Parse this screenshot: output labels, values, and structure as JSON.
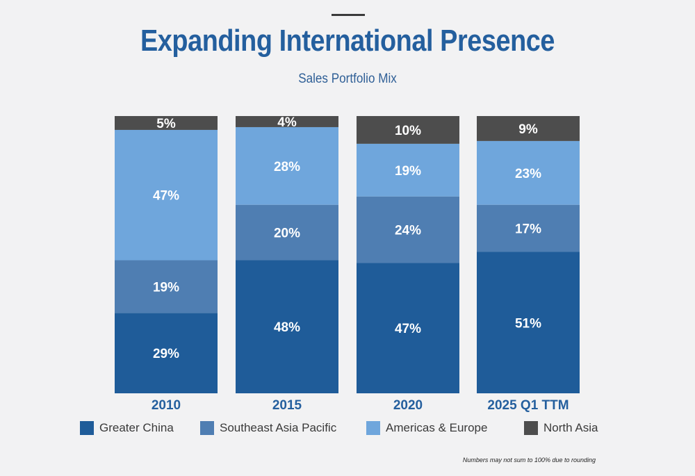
{
  "header": {
    "title": "Expanding International Presence",
    "subtitle": "Sales Portfolio Mix"
  },
  "footnote": "Numbers may not sum to 100% due to rounding",
  "colors": {
    "Greater China": "#1f5c99",
    "Southeast Asia Pacific": "#4f7eb2",
    "Americas & Europe": "#6fa6dc",
    "North Asia": "#4d4d4d"
  },
  "chart_data": {
    "type": "bar",
    "stacked": true,
    "categories": [
      "2010",
      "2015",
      "2020",
      "2025 Q1 TTM"
    ],
    "series": [
      {
        "name": "Greater China",
        "values": [
          29,
          48,
          47,
          51
        ]
      },
      {
        "name": "Southeast Asia Pacific",
        "values": [
          19,
          20,
          24,
          17
        ]
      },
      {
        "name": "Americas & Europe",
        "values": [
          47,
          28,
          19,
          23
        ]
      },
      {
        "name": "North Asia",
        "values": [
          5,
          4,
          10,
          9
        ]
      }
    ],
    "value_suffix": "%",
    "ylim": [
      0,
      100
    ],
    "grid": false,
    "legend_position": "bottom"
  }
}
